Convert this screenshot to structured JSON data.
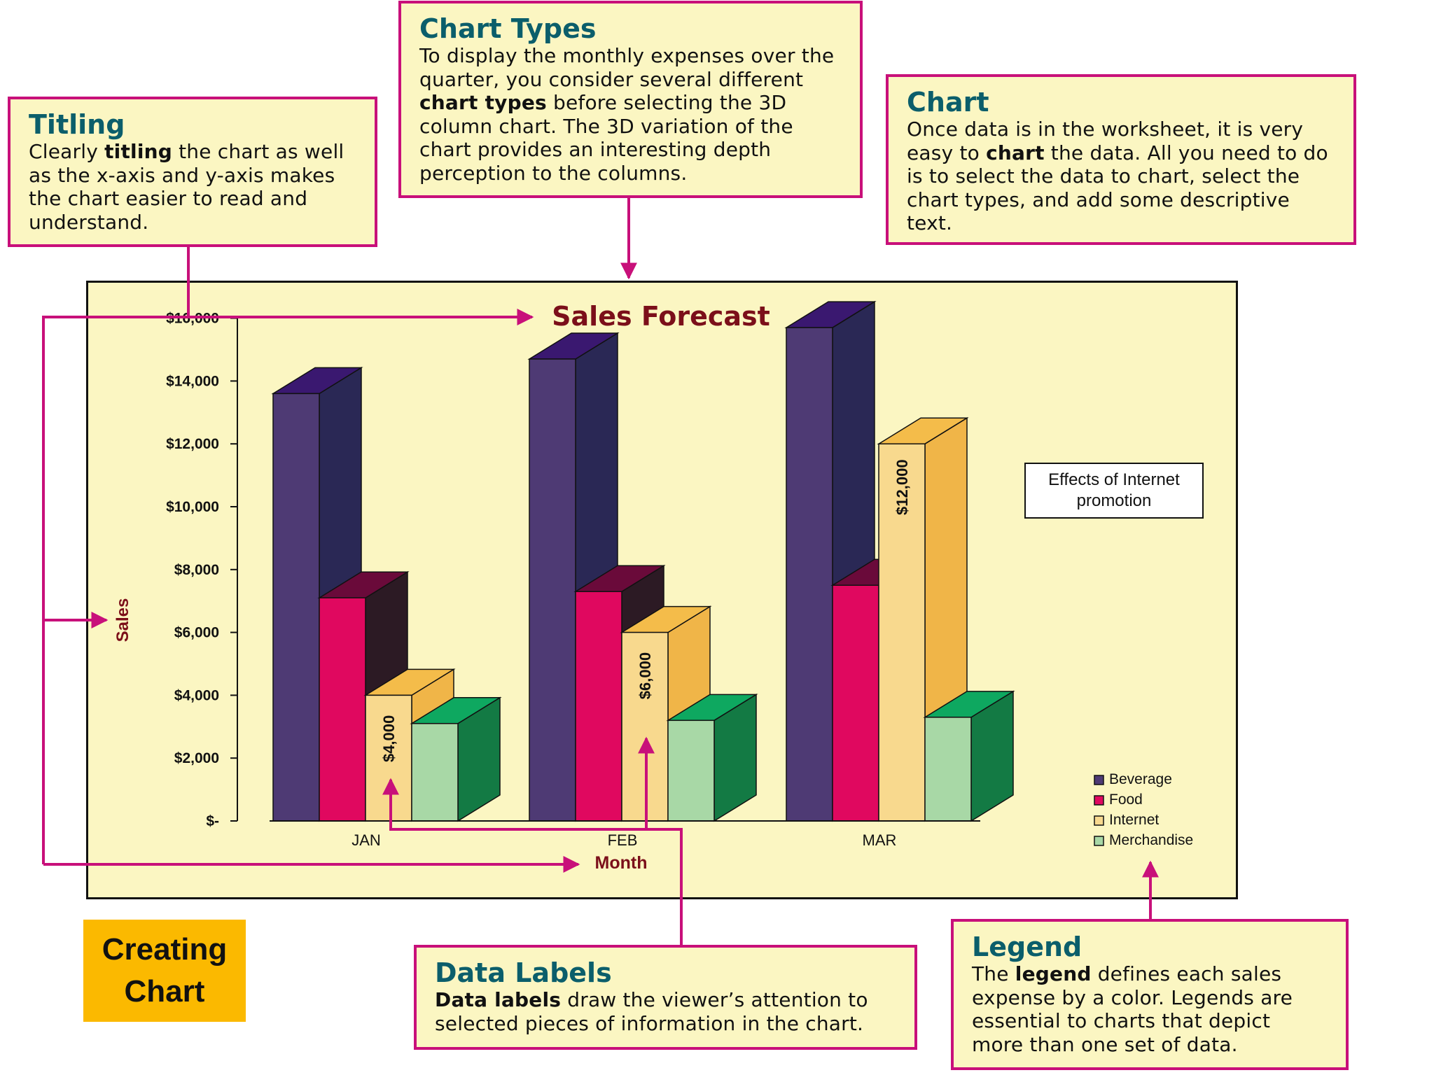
{
  "callouts": {
    "titling": {
      "heading": "Titling",
      "text": [
        {
          "t": "Clearly "
        },
        {
          "t": "titling",
          "b": true
        },
        {
          "t": " the chart as well as the x-axis and y-axis makes the chart easier to read and understand."
        }
      ]
    },
    "chart_types": {
      "heading": "Chart Types",
      "text": [
        {
          "t": "To display the monthly expenses over the quarter, you consider several different "
        },
        {
          "t": "chart types",
          "b": true
        },
        {
          "t": " before selecting the 3D column chart. The 3D variation of the chart provides an interesting depth perception to the columns."
        }
      ]
    },
    "chart": {
      "heading": "Chart",
      "text": [
        {
          "t": "Once data is in the worksheet, it is very easy to "
        },
        {
          "t": "chart",
          "b": true
        },
        {
          "t": " the data. All you need to do is to select the data to chart, select the chart types, and add some descriptive text."
        }
      ]
    },
    "data_labels": {
      "heading": "Data Labels",
      "text": [
        {
          "t": "Data labels",
          "b": true
        },
        {
          "t": " draw the viewer’s attention to selected pieces of information in the chart."
        }
      ]
    },
    "legend": {
      "heading": "Legend",
      "text": [
        {
          "t": "The "
        },
        {
          "t": "legend",
          "b": true
        },
        {
          "t": " defines each sales expense by a color. Legends are essential to charts that depict more than one set of data."
        }
      ]
    }
  },
  "badge": {
    "label": "Creating\nChart"
  },
  "annotation": {
    "label": "Effects of Internet\npromotion"
  },
  "chart_data": {
    "type": "bar",
    "title": "Sales Forecast",
    "xlabel": "Month",
    "ylabel": "Sales",
    "categories": [
      "JAN",
      "FEB",
      "MAR"
    ],
    "series": [
      {
        "name": "Beverage",
        "values": [
          13600,
          14700,
          15700
        ]
      },
      {
        "name": "Food",
        "values": [
          7100,
          7300,
          7500
        ]
      },
      {
        "name": "Internet",
        "values": [
          4000,
          6000,
          12000
        ]
      },
      {
        "name": "Merchandise",
        "values": [
          3100,
          3200,
          3300
        ]
      }
    ],
    "ylim": [
      0,
      16000
    ],
    "yticks": [
      0,
      2000,
      4000,
      6000,
      8000,
      10000,
      12000,
      14000,
      16000
    ],
    "ytick_labels": [
      "$-",
      "$2,000",
      "$4,000",
      "$6,000",
      "$8,000",
      "$10,000",
      "$12,000",
      "$14,000",
      "$16,000"
    ],
    "data_labels": [
      {
        "category": "JAN",
        "series": "Internet",
        "text": "$4,000"
      },
      {
        "category": "FEB",
        "series": "Internet",
        "text": "$6,000"
      },
      {
        "category": "MAR",
        "series": "Internet",
        "text": "$12,000"
      }
    ],
    "grid": false,
    "legend_position": "bottom-right",
    "colors": {
      "Beverage": {
        "front": "#4e3a74",
        "top": "#3a1870",
        "side": "#2a2855"
      },
      "Food": {
        "front": "#e0085f",
        "top": "#6a0a3a",
        "side": "#2c1a24"
      },
      "Internet": {
        "front": "#f8d98e",
        "top": "#f4bc4a",
        "side": "#f0b548"
      },
      "Merchandise": {
        "front": "#a8d8a6",
        "top": "#0ea860",
        "side": "#137a44"
      }
    },
    "title_color": "#7b0f1a",
    "callout_border_color": "#c8107a"
  }
}
